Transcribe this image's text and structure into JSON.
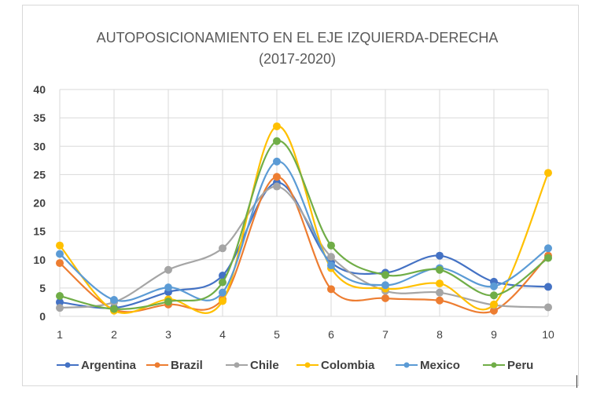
{
  "chart_data": {
    "type": "line",
    "title": "AUTOPOSICIONAMIENTO EN EL EJE IZQUIERDA-DERECHA",
    "subtitle": "(2017-2020)",
    "xlabel": "",
    "ylabel": "",
    "x": [
      1,
      2,
      3,
      4,
      5,
      6,
      7,
      8,
      9,
      10
    ],
    "ylim": [
      0,
      40
    ],
    "yticks": [
      0,
      5,
      10,
      15,
      20,
      25,
      30,
      35,
      40
    ],
    "grid": true,
    "smooth": true,
    "legend_position": "bottom",
    "series": [
      {
        "name": "Argentina",
        "color": "#4472C4",
        "values": [
          2.5,
          1.5,
          4.3,
          7.2,
          23.6,
          9.5,
          7.7,
          10.7,
          6.1,
          5.2
        ]
      },
      {
        "name": "Brazil",
        "color": "#ED7D31",
        "values": [
          9.4,
          1.2,
          2.1,
          3.0,
          24.6,
          4.8,
          3.2,
          2.8,
          1.0,
          10.7
        ]
      },
      {
        "name": "Chile",
        "color": "#A5A5A5",
        "values": [
          1.5,
          2.5,
          8.2,
          12.0,
          22.9,
          10.5,
          4.5,
          4.2,
          2.0,
          1.6
        ]
      },
      {
        "name": "Colombia",
        "color": "#FFC000",
        "values": [
          12.5,
          1.0,
          3.0,
          2.7,
          33.5,
          8.5,
          4.9,
          5.8,
          2.1,
          25.3
        ]
      },
      {
        "name": "Mexico",
        "color": "#5B9BD5",
        "values": [
          11.0,
          2.9,
          5.1,
          4.2,
          27.3,
          9.0,
          5.5,
          8.5,
          5.3,
          12.0
        ]
      },
      {
        "name": "Peru",
        "color": "#70AD47",
        "values": [
          3.6,
          1.3,
          2.6,
          6.0,
          30.9,
          12.5,
          7.3,
          8.2,
          3.7,
          10.3
        ]
      }
    ]
  }
}
